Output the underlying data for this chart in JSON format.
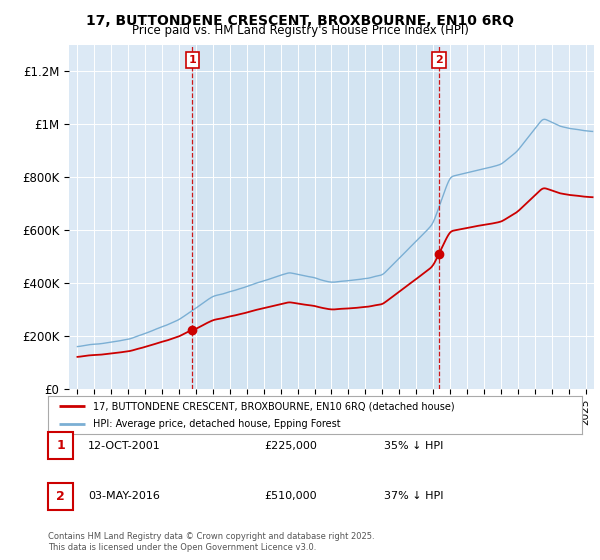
{
  "title": "17, BUTTONDENE CRESCENT, BROXBOURNE, EN10 6RQ",
  "subtitle": "Price paid vs. HM Land Registry's House Price Index (HPI)",
  "hpi_color": "#7bafd4",
  "price_color": "#cc0000",
  "vline_color": "#cc0000",
  "bg_color": "#dce9f5",
  "bg_shaded": "#cce0f0",
  "ylim": [
    0,
    1300000
  ],
  "yticks": [
    0,
    200000,
    400000,
    600000,
    800000,
    1000000,
    1200000
  ],
  "ytick_labels": [
    "£0",
    "£200K",
    "£400K",
    "£600K",
    "£800K",
    "£1M",
    "£1.2M"
  ],
  "sale1_year": 2001.79,
  "sale1_price": 225000,
  "sale1_label": "1",
  "sale2_year": 2016.34,
  "sale2_price": 510000,
  "sale2_label": "2",
  "xlim": [
    1994.5,
    2025.5
  ],
  "footer": "Contains HM Land Registry data © Crown copyright and database right 2025.\nThis data is licensed under the Open Government Licence v3.0.",
  "legend_line1": "17, BUTTONDENE CRESCENT, BROXBOURNE, EN10 6RQ (detached house)",
  "legend_line2": "HPI: Average price, detached house, Epping Forest",
  "table_row1": [
    "1",
    "12-OCT-2001",
    "£225,000",
    "35% ↓ HPI"
  ],
  "table_row2": [
    "2",
    "03-MAY-2016",
    "£510,000",
    "37% ↓ HPI"
  ]
}
